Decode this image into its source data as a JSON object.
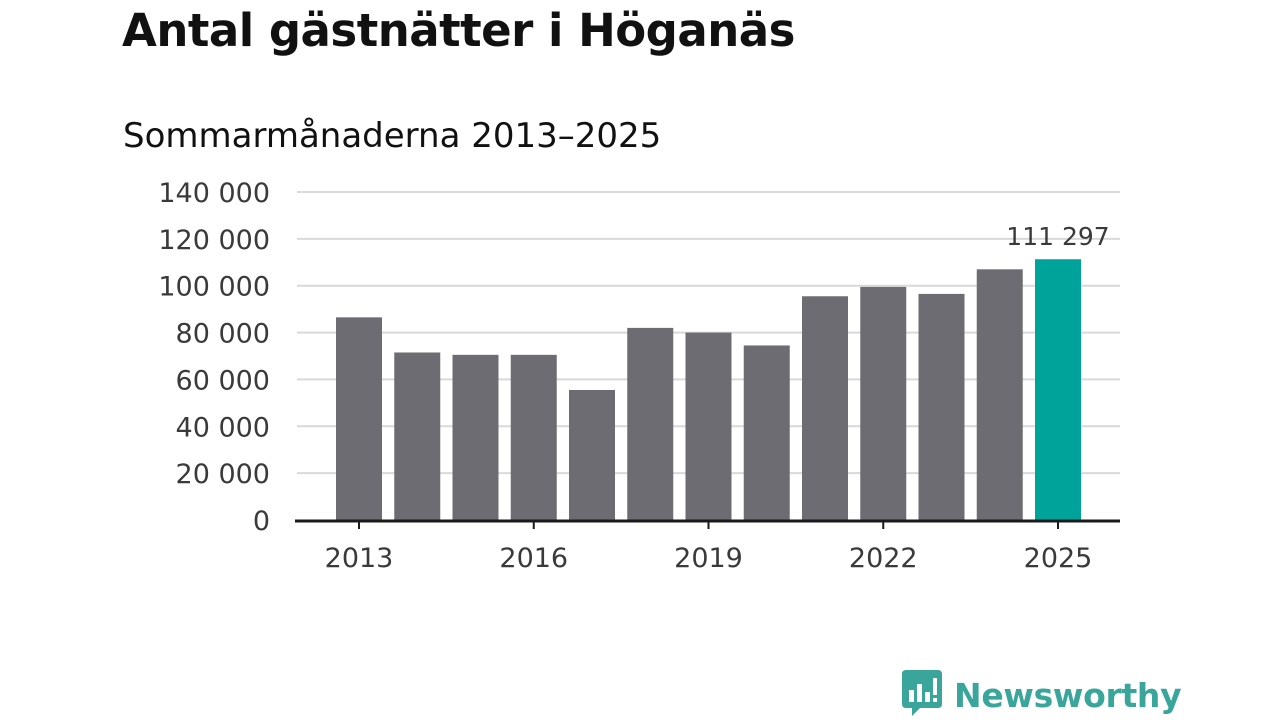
{
  "header": {
    "title": "Antal gästnätter i Höganäs",
    "subtitle": "Sommarmånaderna 2013–2025"
  },
  "brand": {
    "name": "Newsworthy",
    "icon": "chat-bubble-bar-chart-icon",
    "color": "#3aa69b"
  },
  "colors": {
    "bar": "#6d6c72",
    "highlight": "#00a399",
    "grid": "#d9d9d9",
    "axis": "#1a1a1a"
  },
  "chart_data": {
    "type": "bar",
    "title": "Antal gästnätter i Höganäs",
    "subtitle": "Sommarmånaderna 2013–2025",
    "xlabel": "",
    "ylabel": "",
    "categories": [
      "2013",
      "2014",
      "2015",
      "2016",
      "2017",
      "2018",
      "2019",
      "2020",
      "2021",
      "2022",
      "2023",
      "2024",
      "2025"
    ],
    "values": [
      86500,
      71500,
      70500,
      70500,
      55500,
      82000,
      80000,
      74500,
      95500,
      99500,
      96500,
      107000,
      111297
    ],
    "highlight_index": 12,
    "data_labels": [
      {
        "index": 12,
        "text": "111 297"
      }
    ],
    "ylim": [
      0,
      140000
    ],
    "y_ticks": [
      0,
      20000,
      40000,
      60000,
      80000,
      100000,
      120000,
      140000
    ],
    "y_tick_labels": [
      "0",
      "20 000",
      "40 000",
      "60 000",
      "80 000",
      "100 000",
      "120 000",
      "140 000"
    ],
    "x_ticks": [
      "2013",
      "2016",
      "2019",
      "2022",
      "2025"
    ],
    "grid": true,
    "legend": "none"
  }
}
